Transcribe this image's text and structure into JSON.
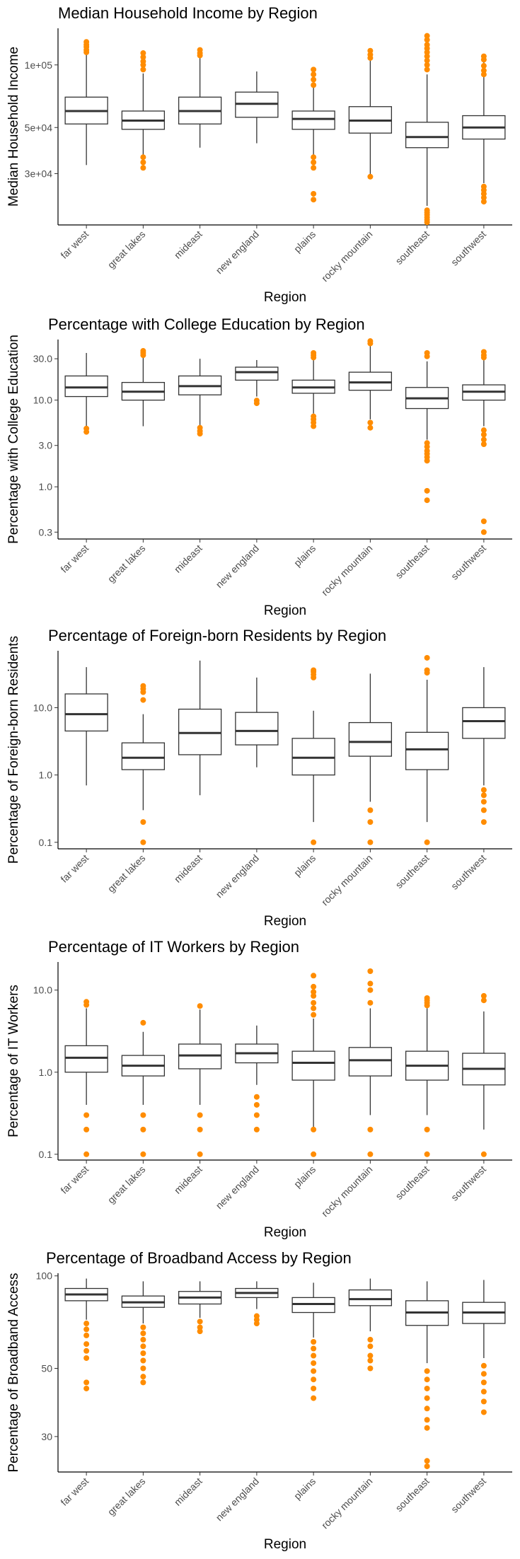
{
  "chart_data": [
    {
      "type": "box",
      "title": "Median Household Income by Region",
      "xlabel": "Region",
      "ylabel": "Median Household Income",
      "scale": "log",
      "ylim": [
        17000,
        150000
      ],
      "yticks": [
        30000,
        50000,
        100000
      ],
      "ytick_labels": [
        "3e+04",
        "5e+04",
        "1e+05"
      ],
      "categories": [
        "far west",
        "great lakes",
        "mideast",
        "new england",
        "plains",
        "rocky mountain",
        "southeast",
        "southwest"
      ],
      "outlier_color": "#ff8c00",
      "boxes": [
        {
          "q1": 52000,
          "median": 60000,
          "q3": 70000,
          "whisker_low": 33000,
          "whisker_high": 113000,
          "outliers": [
            115000,
            118000,
            122000,
            125000,
            129000
          ]
        },
        {
          "q1": 49000,
          "median": 54000,
          "q3": 60000,
          "whisker_low": 37000,
          "whisker_high": 91000,
          "outliers": [
            36000,
            34000,
            32000,
            95000,
            100000,
            104000,
            109000,
            114000
          ]
        },
        {
          "q1": 52000,
          "median": 60000,
          "q3": 70000,
          "whisker_low": 40000,
          "whisker_high": 108000,
          "outliers": [
            111000,
            114000,
            118000
          ]
        },
        {
          "q1": 56000,
          "median": 65000,
          "q3": 74000,
          "whisker_low": 42000,
          "whisker_high": 93000,
          "outliers": []
        },
        {
          "q1": 49000,
          "median": 55000,
          "q3": 60000,
          "whisker_low": 37000,
          "whisker_high": 78000,
          "outliers": [
            36000,
            34000,
            32000,
            24000,
            22500,
            80000,
            85000,
            90000,
            95000
          ]
        },
        {
          "q1": 47000,
          "median": 54000,
          "q3": 63000,
          "whisker_low": 29500,
          "whisker_high": 106000,
          "outliers": [
            29000,
            108000,
            112000,
            117000
          ]
        },
        {
          "q1": 40000,
          "median": 45000,
          "q3": 53000,
          "whisker_low": 21000,
          "whisker_high": 90000,
          "outliers": [
            20000,
            19500,
            19000,
            18500,
            18000,
            17500,
            95000,
            100000,
            105000,
            110000,
            115000,
            120000,
            125000,
            132000,
            138000
          ]
        },
        {
          "q1": 44000,
          "median": 50000,
          "q3": 57000,
          "whisker_low": 27000,
          "whisker_high": 104000,
          "outliers": [
            26000,
            25000,
            24000,
            23000,
            22000,
            90000,
            94000,
            99000,
            106000,
            110000
          ]
        }
      ]
    },
    {
      "type": "box",
      "title": "Percentage with College Education by Region",
      "xlabel": "Region",
      "ylabel": "Percentage with College Education",
      "scale": "log",
      "ylim": [
        0.25,
        50
      ],
      "yticks": [
        0.3,
        1,
        3,
        10,
        30
      ],
      "ytick_labels": [
        "0.3",
        "1.0",
        "3.0",
        "10.0",
        "30.0"
      ],
      "categories": [
        "far west",
        "great lakes",
        "mideast",
        "new england",
        "plains",
        "rocky mountain",
        "southeast",
        "southwest"
      ],
      "outlier_color": "#ff8c00",
      "boxes": [
        {
          "q1": 11,
          "median": 14,
          "q3": 19,
          "whisker_low": 5,
          "whisker_high": 35,
          "outliers": [
            4.7,
            4.3
          ]
        },
        {
          "q1": 10,
          "median": 12.5,
          "q3": 16,
          "whisker_low": 5,
          "whisker_high": 32,
          "outliers": [
            33,
            35,
            37
          ]
        },
        {
          "q1": 11.5,
          "median": 14.5,
          "q3": 19,
          "whisker_low": 5,
          "whisker_high": 30,
          "outliers": [
            4.8,
            4.4,
            4.1
          ]
        },
        {
          "q1": 17,
          "median": 21,
          "q3": 24,
          "whisker_low": 11,
          "whisker_high": 29,
          "outliers": [
            9.9,
            9.2
          ]
        },
        {
          "q1": 12,
          "median": 14,
          "q3": 17,
          "whisker_low": 7,
          "whisker_high": 29,
          "outliers": [
            6.5,
            6,
            5.5,
            5,
            31,
            33,
            35
          ]
        },
        {
          "q1": 13,
          "median": 16,
          "q3": 21,
          "whisker_low": 6,
          "whisker_high": 43,
          "outliers": [
            5.5,
            4.8,
            45,
            48
          ]
        },
        {
          "q1": 8,
          "median": 10.5,
          "q3": 14,
          "whisker_low": 3.5,
          "whisker_high": 28,
          "outliers": [
            3.2,
            2.9,
            2.6,
            2.4,
            2.2,
            2.0,
            0.9,
            0.7,
            32,
            35
          ]
        },
        {
          "q1": 10,
          "median": 12.5,
          "q3": 15,
          "whisker_low": 5,
          "whisker_high": 29,
          "outliers": [
            4.5,
            4,
            3.5,
            3.1,
            0.4,
            0.3,
            31,
            33,
            36
          ]
        }
      ]
    },
    {
      "type": "box",
      "title": "Percentage of Foreign-born Residents by Region",
      "xlabel": "Region",
      "ylabel": "Percentage of Foreign-born Residents",
      "scale": "log",
      "ylim": [
        0.08,
        70
      ],
      "yticks": [
        0.1,
        1,
        10
      ],
      "ytick_labels": [
        "0.1",
        "1.0",
        "10.0"
      ],
      "categories": [
        "far west",
        "great lakes",
        "mideast",
        "new england",
        "plains",
        "rocky mountain",
        "southeast",
        "southwest"
      ],
      "outlier_color": "#ff8c00",
      "boxes": [
        {
          "q1": 4.5,
          "median": 8,
          "q3": 16,
          "whisker_low": 0.7,
          "whisker_high": 40,
          "outliers": []
        },
        {
          "q1": 1.2,
          "median": 1.8,
          "q3": 3,
          "whisker_low": 0.3,
          "whisker_high": 8,
          "outliers": [
            0.2,
            0.1,
            13,
            17,
            19,
            21
          ]
        },
        {
          "q1": 2,
          "median": 4.2,
          "q3": 9.5,
          "whisker_low": 0.5,
          "whisker_high": 50,
          "outliers": []
        },
        {
          "q1": 2.8,
          "median": 4.5,
          "q3": 8.5,
          "whisker_low": 1.3,
          "whisker_high": 28,
          "outliers": []
        },
        {
          "q1": 1,
          "median": 1.8,
          "q3": 3.5,
          "whisker_low": 0.2,
          "whisker_high": 9,
          "outliers": [
            0.1,
            28,
            31,
            34,
            36
          ]
        },
        {
          "q1": 1.9,
          "median": 3.1,
          "q3": 6,
          "whisker_low": 0.4,
          "whisker_high": 32,
          "outliers": [
            0.3,
            0.2,
            0.1
          ]
        },
        {
          "q1": 1.2,
          "median": 2.4,
          "q3": 4.3,
          "whisker_low": 0.2,
          "whisker_high": 26,
          "outliers": [
            0.1,
            33,
            36,
            55
          ]
        },
        {
          "q1": 3.5,
          "median": 6.3,
          "q3": 10,
          "whisker_low": 0.7,
          "whisker_high": 40,
          "outliers": [
            0.6,
            0.5,
            0.4,
            0.3,
            0.2
          ]
        }
      ]
    },
    {
      "type": "box",
      "title": "Percentage of IT Workers by Region",
      "xlabel": "Region",
      "ylabel": "Percentage of IT Workers",
      "scale": "log",
      "ylim": [
        0.085,
        22
      ],
      "yticks": [
        0.1,
        1,
        10
      ],
      "ytick_labels": [
        "0.1",
        "1.0",
        "10.0"
      ],
      "categories": [
        "far west",
        "great lakes",
        "mideast",
        "new england",
        "plains",
        "rocky mountain",
        "southeast",
        "southwest"
      ],
      "outlier_color": "#ff8c00",
      "boxes": [
        {
          "q1": 1,
          "median": 1.5,
          "q3": 2.1,
          "whisker_low": 0.4,
          "whisker_high": 6,
          "outliers": [
            0.3,
            0.2,
            0.1,
            6.6,
            7.2
          ]
        },
        {
          "q1": 0.9,
          "median": 1.2,
          "q3": 1.6,
          "whisker_low": 0.4,
          "whisker_high": 3.1,
          "outliers": [
            0.3,
            0.2,
            0.1,
            4
          ]
        },
        {
          "q1": 1.1,
          "median": 1.6,
          "q3": 2.2,
          "whisker_low": 0.4,
          "whisker_high": 5.8,
          "outliers": [
            0.3,
            0.2,
            0.1,
            6.4
          ]
        },
        {
          "q1": 1.3,
          "median": 1.7,
          "q3": 2.2,
          "whisker_low": 0.7,
          "whisker_high": 3.7,
          "outliers": [
            0.5,
            0.4,
            0.3,
            0.2
          ]
        },
        {
          "q1": 0.8,
          "median": 1.3,
          "q3": 1.8,
          "whisker_low": 0.2,
          "whisker_high": 4.5,
          "outliers": [
            0.1,
            0.2,
            5,
            6,
            7,
            8.5,
            9.5,
            11,
            15
          ]
        },
        {
          "q1": 0.9,
          "median": 1.4,
          "q3": 2,
          "whisker_low": 0.3,
          "whisker_high": 6,
          "outliers": [
            0.2,
            0.1,
            7,
            10,
            12,
            17
          ]
        },
        {
          "q1": 0.8,
          "median": 1.2,
          "q3": 1.8,
          "whisker_low": 0.3,
          "whisker_high": 6,
          "outliers": [
            0.2,
            0.1,
            6.5,
            7,
            7.5,
            8
          ]
        },
        {
          "q1": 0.7,
          "median": 1.1,
          "q3": 1.7,
          "whisker_low": 0.2,
          "whisker_high": 5.5,
          "outliers": [
            0.1,
            7.5,
            8.5
          ]
        }
      ]
    },
    {
      "type": "box",
      "title": "Percentage of Broadband Access by Region",
      "xlabel": "Region",
      "ylabel": "Percentage of Broadband Access",
      "scale": "log",
      "ylim": [
        23,
        102
      ],
      "yticks": [
        30,
        50,
        100
      ],
      "ytick_labels": [
        "30",
        "50",
        "100"
      ],
      "categories": [
        "far west",
        "great lakes",
        "mideast",
        "new england",
        "plains",
        "rocky mountain",
        "southeast",
        "southwest"
      ],
      "outlier_color": "#ff8c00",
      "boxes": [
        {
          "q1": 83,
          "median": 87,
          "q3": 91,
          "whisker_low": 72,
          "whisker_high": 98,
          "outliers": [
            70,
            67,
            64,
            60,
            57,
            54,
            45,
            43
          ]
        },
        {
          "q1": 79,
          "median": 82,
          "q3": 86,
          "whisker_low": 70,
          "whisker_high": 96,
          "outliers": [
            68,
            65,
            62,
            59,
            56,
            53,
            50,
            47,
            45
          ]
        },
        {
          "q1": 81,
          "median": 85,
          "q3": 89,
          "whisker_low": 73,
          "whisker_high": 96,
          "outliers": [
            71,
            68,
            66
          ]
        },
        {
          "q1": 85,
          "median": 88,
          "q3": 91,
          "whisker_low": 78,
          "whisker_high": 96,
          "outliers": [
            74,
            72,
            70
          ]
        },
        {
          "q1": 76,
          "median": 81,
          "q3": 85,
          "whisker_low": 63,
          "whisker_high": 95,
          "outliers": [
            61,
            58,
            55,
            52,
            49,
            46,
            43,
            40
          ]
        },
        {
          "q1": 80,
          "median": 84,
          "q3": 90,
          "whisker_low": 66,
          "whisker_high": 98,
          "outliers": [
            62,
            59,
            55,
            53,
            50
          ]
        },
        {
          "q1": 69,
          "median": 76,
          "q3": 83,
          "whisker_low": 52,
          "whisker_high": 96,
          "outliers": [
            49,
            46,
            43,
            40,
            37,
            34,
            32,
            25,
            24
          ]
        },
        {
          "q1": 70,
          "median": 76,
          "q3": 82,
          "whisker_low": 54,
          "whisker_high": 97,
          "outliers": [
            51,
            48,
            45,
            42,
            39,
            36
          ]
        }
      ]
    }
  ]
}
